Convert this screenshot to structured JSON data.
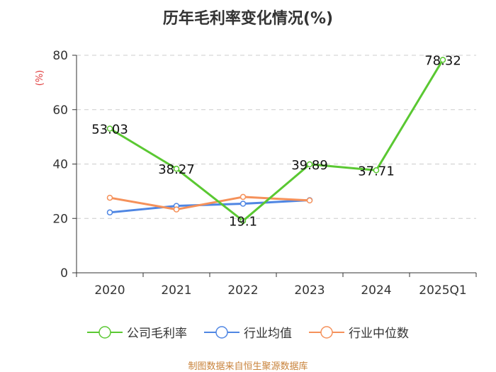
{
  "chart_data": {
    "type": "line",
    "title": "历年毛利率变化情况(%)",
    "ylabel": "(%)",
    "xlabel": "",
    "ylim": [
      0,
      80
    ],
    "yticks": [
      0,
      20,
      40,
      60,
      80
    ],
    "categories": [
      "2020",
      "2021",
      "2022",
      "2023",
      "2024",
      "2025Q1"
    ],
    "series": [
      {
        "name": "公司毛利率",
        "color": "#5ac832",
        "values": [
          53.03,
          38.27,
          19.1,
          39.89,
          37.71,
          78.32
        ],
        "labels": [
          "53.03",
          "38.27",
          "19.1",
          "39.89",
          "37.71",
          "78.32"
        ]
      },
      {
        "name": "行业均值",
        "color": "#4f86e3",
        "values": [
          22.2,
          24.6,
          25.4,
          26.7,
          null,
          null
        ]
      },
      {
        "name": "行业中位数",
        "color": "#f5915a",
        "values": [
          27.6,
          23.3,
          27.9,
          26.6,
          null,
          null
        ]
      }
    ],
    "legend_position": "bottom",
    "grid": true
  },
  "source": "制图数据来自恒生聚源数据库"
}
